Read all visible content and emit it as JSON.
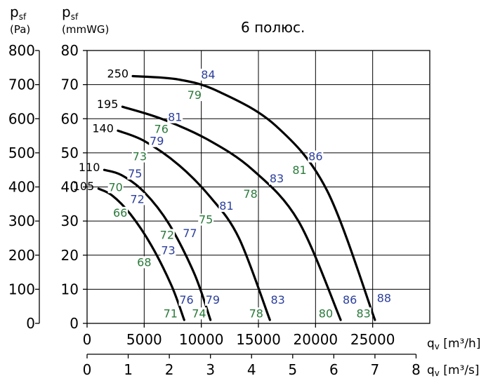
{
  "chart_data": {
    "type": "line",
    "title": "6 полюс.",
    "y_left_label": {
      "main": "p",
      "sub": "sf",
      "unit": "(Pa)"
    },
    "y_right_label": {
      "main": "p",
      "sub": "sf",
      "unit": "(mmWG)"
    },
    "x_label_main": {
      "main": "q",
      "sub": "v",
      "unit": " [m³/h]"
    },
    "x_label_second": {
      "main": "q",
      "sub": "v",
      "unit": " [m³/s]"
    },
    "y_ticks_pa": [
      0,
      100,
      200,
      300,
      400,
      500,
      600,
      700,
      800
    ],
    "y_ticks_mmwg": [
      0,
      10,
      20,
      30,
      40,
      50,
      60,
      70,
      80
    ],
    "x_ticks_m3h": [
      0,
      5000,
      10000,
      15000,
      20000,
      25000
    ],
    "x_ticks_m3s": [
      0,
      1,
      2,
      3,
      4,
      5,
      6,
      7,
      8
    ],
    "xlim_m3h": [
      0,
      30000
    ],
    "ylim_mmwg": [
      0,
      80
    ],
    "grid": true,
    "series": [
      {
        "name": "105",
        "x": [
          1000,
          2200,
          3800,
          5600,
          7400,
          8500
        ],
        "y": [
          39.5,
          37.5,
          32,
          23,
          11,
          1
        ]
      },
      {
        "name": "110",
        "x": [
          1500,
          3000,
          5000,
          7200,
          9400,
          10800
        ],
        "y": [
          45,
          43.5,
          38.5,
          29,
          14.5,
          1
        ]
      },
      {
        "name": "140",
        "x": [
          2700,
          5000,
          8000,
          10800,
          13300,
          16000
        ],
        "y": [
          56.5,
          53.5,
          46.5,
          37,
          25,
          1
        ]
      },
      {
        "name": "195",
        "x": [
          3100,
          6500,
          10500,
          14500,
          18500,
          22200
        ],
        "y": [
          63.5,
          60,
          54,
          45,
          30,
          1
        ]
      },
      {
        "name": "250",
        "x": [
          4000,
          8000,
          11500,
          16500,
          21000,
          25200
        ],
        "y": [
          72.5,
          71.5,
          68,
          58,
          39,
          1
        ]
      }
    ],
    "annotations": [
      {
        "text": "84",
        "x": 10600,
        "y": 72,
        "color": "blue"
      },
      {
        "text": "79",
        "x": 9400,
        "y": 66,
        "color": "green"
      },
      {
        "text": "81",
        "x": 7700,
        "y": 59.5,
        "color": "blue"
      },
      {
        "text": "76",
        "x": 6500,
        "y": 56,
        "color": "green"
      },
      {
        "text": "79",
        "x": 6100,
        "y": 52.5,
        "color": "blue"
      },
      {
        "text": "73",
        "x": 4600,
        "y": 48,
        "color": "green"
      },
      {
        "text": "75",
        "x": 4200,
        "y": 43,
        "color": "blue"
      },
      {
        "text": "70",
        "x": 2500,
        "y": 39,
        "color": "green"
      },
      {
        "text": "72",
        "x": 4400,
        "y": 35.5,
        "color": "blue"
      },
      {
        "text": "66",
        "x": 2900,
        "y": 31.5,
        "color": "green"
      },
      {
        "text": "86",
        "x": 20000,
        "y": 48,
        "color": "blue"
      },
      {
        "text": "81",
        "x": 18600,
        "y": 44,
        "color": "green"
      },
      {
        "text": "83",
        "x": 16600,
        "y": 41.5,
        "color": "blue"
      },
      {
        "text": "78",
        "x": 14300,
        "y": 37,
        "color": "green"
      },
      {
        "text": "81",
        "x": 12200,
        "y": 33.5,
        "color": "blue"
      },
      {
        "text": "75",
        "x": 10400,
        "y": 29.5,
        "color": "green"
      },
      {
        "text": "77",
        "x": 9000,
        "y": 25.5,
        "color": "blue"
      },
      {
        "text": "72",
        "x": 7000,
        "y": 25,
        "color": "green"
      },
      {
        "text": "73",
        "x": 7100,
        "y": 20.5,
        "color": "blue"
      },
      {
        "text": "68",
        "x": 5000,
        "y": 17,
        "color": "green"
      },
      {
        "text": "76",
        "x": 8700,
        "y": 6,
        "color": "blue"
      },
      {
        "text": "79",
        "x": 11000,
        "y": 6,
        "color": "blue"
      },
      {
        "text": "83",
        "x": 16700,
        "y": 6,
        "color": "blue"
      },
      {
        "text": "86",
        "x": 23000,
        "y": 6,
        "color": "blue"
      },
      {
        "text": "88",
        "x": 26000,
        "y": 6.5,
        "color": "blue"
      },
      {
        "text": "71",
        "x": 7300,
        "y": 2,
        "color": "green"
      },
      {
        "text": "74",
        "x": 9800,
        "y": 2,
        "color": "green"
      },
      {
        "text": "78",
        "x": 14800,
        "y": 2,
        "color": "green"
      },
      {
        "text": "80",
        "x": 20900,
        "y": 2,
        "color": "green"
      },
      {
        "text": "83",
        "x": 24200,
        "y": 2,
        "color": "green"
      }
    ],
    "colors": {
      "blue": "#2c3f9c",
      "green": "#2a7a3b",
      "curve": "#000000",
      "grid": "#000000"
    }
  }
}
